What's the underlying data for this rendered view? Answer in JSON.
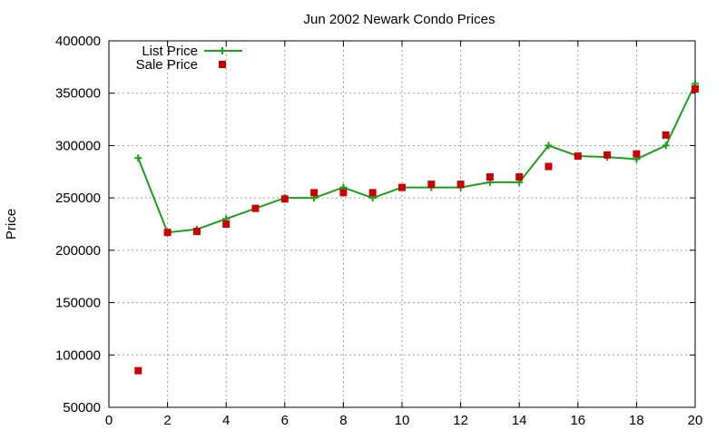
{
  "chart_data": {
    "type": "line",
    "title": "Jun 2002 Newark Condo Prices",
    "xlabel": "",
    "ylabel": "Price",
    "xlim": [
      0,
      20
    ],
    "ylim": [
      50000,
      400000
    ],
    "x_ticks": [
      0,
      2,
      4,
      6,
      8,
      10,
      12,
      14,
      16,
      18,
      20
    ],
    "y_ticks": [
      50000,
      100000,
      150000,
      200000,
      250000,
      300000,
      350000,
      400000
    ],
    "grid": true,
    "legend_position": "top-left",
    "series": [
      {
        "name": "List Price",
        "style": "line-with-plus-markers",
        "color": "#1aa01a",
        "x": [
          1,
          2,
          3,
          4,
          5,
          6,
          7,
          8,
          9,
          10,
          11,
          12,
          13,
          14,
          15,
          16,
          17,
          18,
          19,
          20
        ],
        "values": [
          288000,
          217000,
          220000,
          230000,
          240000,
          250000,
          250000,
          260000,
          250000,
          260000,
          260000,
          260000,
          265000,
          265000,
          300000,
          290000,
          289000,
          287000,
          300000,
          359000
        ]
      },
      {
        "name": "Sale Price",
        "style": "square-markers",
        "color": "#cc0000",
        "x": [
          1,
          2,
          3,
          4,
          5,
          6,
          7,
          8,
          9,
          10,
          11,
          12,
          13,
          14,
          15,
          16,
          17,
          18,
          19,
          20
        ],
        "values": [
          85000,
          217000,
          218000,
          225000,
          240000,
          249000,
          255000,
          255000,
          255000,
          260000,
          263000,
          263000,
          270000,
          270000,
          280000,
          290000,
          291000,
          292000,
          310000,
          354000
        ]
      }
    ]
  }
}
